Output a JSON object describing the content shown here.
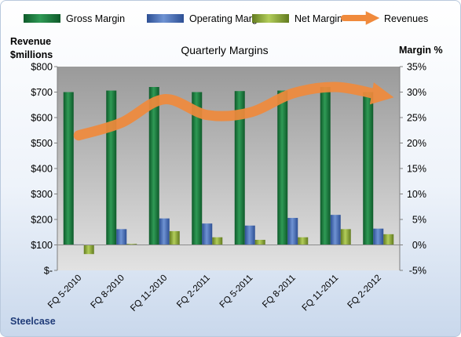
{
  "chart_data": {
    "type": "bar",
    "title": "Quarterly Margins",
    "company": "Steelcase",
    "ylabel_left": [
      "Revenue",
      "$millions"
    ],
    "ylabel_right": "Margin %",
    "categories": [
      "FQ 5-2010",
      "FQ 8-2010",
      "FQ 11-2010",
      "FQ 2-2011",
      "FQ 5-2011",
      "FQ 8-2011",
      "FQ 11-2011",
      "FQ 2-2012"
    ],
    "left_ticks": [
      "$-",
      "$100",
      "$200",
      "$300",
      "$400",
      "$500",
      "$600",
      "$700",
      "$800"
    ],
    "right_ticks": [
      "-5%",
      "0%",
      "5%",
      "10%",
      "15%",
      "20%",
      "25%",
      "30%",
      "35%"
    ],
    "left_axis": {
      "min": 0,
      "max": 800,
      "step": 100
    },
    "right_axis": {
      "min": -5,
      "max": 35,
      "step": 5
    },
    "series": [
      {
        "name": "Gross Margin",
        "axis": "right",
        "kind": "bar",
        "color": "#1f7a3f",
        "values": [
          30.0,
          30.3,
          31.0,
          30.0,
          30.2,
          30.3,
          31.0,
          30.0
        ]
      },
      {
        "name": "Operating Margin",
        "axis": "right",
        "kind": "bar",
        "color": "#4a6fb5",
        "values": [
          0.1,
          3.1,
          5.2,
          4.2,
          3.8,
          5.3,
          5.9,
          3.2
        ]
      },
      {
        "name": "Net Margin",
        "axis": "right",
        "kind": "bar",
        "color": "#8fae3c",
        "values": [
          -1.8,
          0.2,
          2.7,
          1.5,
          1.0,
          1.5,
          3.1,
          2.1
        ]
      },
      {
        "name": "Revenues",
        "axis": "left",
        "kind": "line",
        "color": "#f08a3c",
        "values": [
          530,
          580,
          672,
          610,
          620,
          695,
          720,
          690
        ]
      }
    ],
    "legend_position": "top",
    "grid": false
  }
}
